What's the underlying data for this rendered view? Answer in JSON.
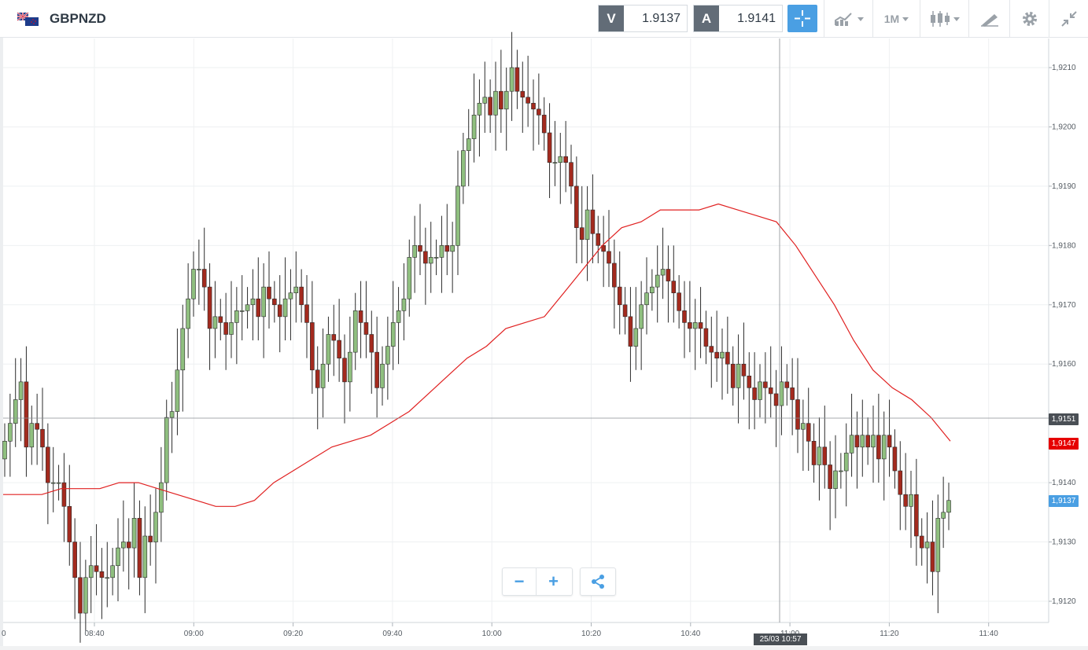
{
  "header": {
    "symbol": "GBPNZD",
    "sell_tag": "V",
    "sell_price": "1.9137",
    "buy_tag": "A",
    "buy_price": "1.9141",
    "timeframe": "1M",
    "icons": [
      "flag-icon",
      "crosshair-icon",
      "chart-type-icon",
      "timeframe-dropdown",
      "candles-icon",
      "draw-tools-icon",
      "gear-icon",
      "collapse-icon"
    ]
  },
  "chart_data": {
    "type": "candlestick",
    "y_ticks": [
      "1,9210",
      "1,9200",
      "1,9190",
      "1,9180",
      "1,9170",
      "1,9160",
      "1,9140",
      "1,9130",
      "1,9120"
    ],
    "x_ticks": [
      "08:40",
      "09:00",
      "09:20",
      "09:40",
      "10:00",
      "10:20",
      "10:40",
      "11:00",
      "11:20",
      "11:40"
    ],
    "x_edge_label": "0",
    "ylim": [
      1.9116,
      1.9214
    ],
    "crosshair_price": "1,9151",
    "ma_price": "1,9147",
    "last_price": "1,9137",
    "crosshair_time": "25/03 10:57",
    "closes": [
      1.9147,
      1.915,
      1.9154,
      1.9157,
      1.9146,
      1.915,
      1.9149,
      1.9146,
      1.914,
      1.914,
      1.914,
      1.9136,
      1.913,
      1.9124,
      1.9118,
      1.9124,
      1.9126,
      1.9125,
      1.9124,
      1.9124,
      1.9126,
      1.9129,
      1.913,
      1.9129,
      1.9134,
      1.9124,
      1.9131,
      1.913,
      1.9135,
      1.914,
      1.9151,
      1.9152,
      1.9159,
      1.9166,
      1.9171,
      1.9176,
      1.9176,
      1.9173,
      1.9166,
      1.9168,
      1.9167,
      1.9165,
      1.9167,
      1.9169,
      1.9169,
      1.917,
      1.9171,
      1.9168,
      1.9173,
      1.9171,
      1.917,
      1.9168,
      1.9171,
      1.9172,
      1.9173,
      1.917,
      1.9167,
      1.9159,
      1.9156,
      1.916,
      1.9165,
      1.9164,
      1.9161,
      1.9157,
      1.9162,
      1.9169,
      1.9167,
      1.9165,
      1.9162,
      1.9156,
      1.916,
      1.9163,
      1.9167,
      1.9169,
      1.9171,
      1.9178,
      1.918,
      1.9179,
      1.9177,
      1.9178,
      1.9178,
      1.918,
      1.9179,
      1.918,
      1.919,
      1.9196,
      1.9198,
      1.9202,
      1.9204,
      1.9205,
      1.9202,
      1.9206,
      1.9203,
      1.9206,
      1.921,
      1.9206,
      1.9205,
      1.9204,
      1.9203,
      1.9202,
      1.9199,
      1.9194,
      1.9194,
      1.9195,
      1.9194,
      1.919,
      1.9183,
      1.9181,
      1.9186,
      1.9182,
      1.918,
      1.9179,
      1.9177,
      1.9173,
      1.917,
      1.9168,
      1.9163,
      1.9166,
      1.917,
      1.9172,
      1.9173,
      1.9175,
      1.9176,
      1.9174,
      1.9172,
      1.9169,
      1.9167,
      1.9166,
      1.9167,
      1.9166,
      1.9163,
      1.9162,
      1.9161,
      1.9162,
      1.916,
      1.9156,
      1.916,
      1.9158,
      1.9156,
      1.9154,
      1.9157,
      1.9156,
      1.9155,
      1.9153,
      1.9157,
      1.9156,
      1.9154,
      1.9149,
      1.915,
      1.9147,
      1.9143,
      1.9146,
      1.9143,
      1.9139,
      1.9142,
      1.9142,
      1.9145,
      1.9148,
      1.9146,
      1.9148,
      1.9146,
      1.9148,
      1.9144,
      1.9148,
      1.9146,
      1.9142,
      1.9138,
      1.9136,
      1.9138,
      1.9131,
      1.9129,
      1.913,
      1.9125,
      1.9134,
      1.9135,
      1.9137
    ],
    "ma": [
      1.9138,
      1.9138,
      1.9138,
      1.9139,
      1.9139,
      1.9139,
      1.914,
      1.914,
      1.9139,
      1.9138,
      1.9137,
      1.9136,
      1.9136,
      1.9137,
      1.914,
      1.9142,
      1.9144,
      1.9146,
      1.9147,
      1.9148,
      1.915,
      1.9152,
      1.9155,
      1.9158,
      1.9161,
      1.9163,
      1.9166,
      1.9167,
      1.9168,
      1.9172,
      1.9176,
      1.918,
      1.9183,
      1.9184,
      1.9186,
      1.9186,
      1.9186,
      1.9187,
      1.9186,
      1.9185,
      1.9184,
      1.918,
      1.9175,
      1.917,
      1.9164,
      1.9159,
      1.9156,
      1.9154,
      1.9151,
      1.9147
    ]
  },
  "controls": {
    "zoom_out": "−",
    "zoom_in": "+",
    "share": "share-icon"
  }
}
